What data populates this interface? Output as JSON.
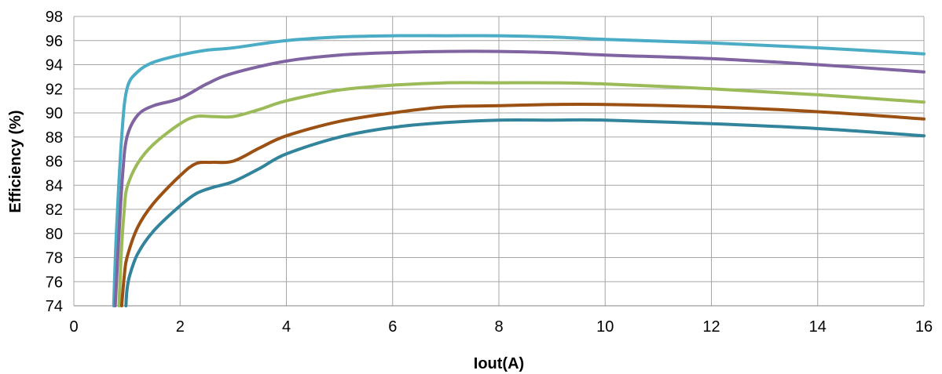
{
  "chart_data": {
    "type": "line",
    "title": "",
    "xlabel": "Iout(A)",
    "ylabel": "Efficiency (%)",
    "xlim": [
      0,
      16
    ],
    "ylim": [
      74,
      98
    ],
    "xticks": [
      "0",
      "2",
      "4",
      "6",
      "8",
      "10",
      "12",
      "14",
      "16"
    ],
    "yticks": [
      "74",
      "76",
      "78",
      "80",
      "82",
      "84",
      "86",
      "88",
      "90",
      "92",
      "94",
      "96",
      "98"
    ],
    "grid": true,
    "legend": "none",
    "series": [
      {
        "color": "#4bacc6",
        "x": [
          0.75,
          0.8,
          0.9,
          1.0,
          1.2,
          1.5,
          2.0,
          2.5,
          3.0,
          4.0,
          5.0,
          6.0,
          7.0,
          8.0,
          9.0,
          10.0,
          12.0,
          14.0,
          16.0
        ],
        "y": [
          74,
          80,
          88,
          92,
          93.4,
          94.2,
          94.8,
          95.2,
          95.4,
          96.0,
          96.3,
          96.4,
          96.4,
          96.4,
          96.3,
          96.1,
          95.8,
          95.4,
          94.9
        ]
      },
      {
        "color": "#8064a2",
        "x": [
          0.78,
          0.85,
          0.92,
          1.0,
          1.2,
          1.5,
          2.0,
          2.5,
          3.0,
          4.0,
          5.0,
          6.0,
          7.0,
          8.0,
          9.0,
          10.0,
          12.0,
          14.0,
          16.0
        ],
        "y": [
          74,
          80,
          85,
          88,
          89.8,
          90.6,
          91.2,
          92.4,
          93.3,
          94.3,
          94.8,
          95.0,
          95.1,
          95.1,
          95.0,
          94.8,
          94.5,
          94.0,
          93.4
        ]
      },
      {
        "color": "#9bbb59",
        "x": [
          0.85,
          0.9,
          0.95,
          1.0,
          1.2,
          1.5,
          2.0,
          2.3,
          2.6,
          3.0,
          3.5,
          4.0,
          5.0,
          6.0,
          7.0,
          8.0,
          9.0,
          10.0,
          12.0,
          14.0,
          16.0
        ],
        "y": [
          74,
          79,
          82,
          83.8,
          85.8,
          87.4,
          89.1,
          89.7,
          89.7,
          89.7,
          90.3,
          91.0,
          91.9,
          92.3,
          92.5,
          92.5,
          92.5,
          92.4,
          92.0,
          91.5,
          90.9
        ]
      },
      {
        "color": "#9c5114",
        "x": [
          0.9,
          0.95,
          1.0,
          1.2,
          1.5,
          2.0,
          2.3,
          2.6,
          3.0,
          3.5,
          4.0,
          5.0,
          6.0,
          7.0,
          8.0,
          9.0,
          10.0,
          12.0,
          14.0,
          16.0
        ],
        "y": [
          74,
          76.5,
          78,
          80.5,
          82.5,
          84.8,
          85.8,
          85.9,
          86.0,
          87.1,
          88.1,
          89.3,
          90.0,
          90.5,
          90.6,
          90.7,
          90.7,
          90.5,
          90.1,
          89.5
        ]
      },
      {
        "color": "#31849b",
        "x": [
          0.98,
          1.0,
          1.05,
          1.2,
          1.5,
          2.0,
          2.3,
          2.6,
          3.0,
          3.5,
          4.0,
          5.0,
          6.0,
          7.0,
          8.0,
          9.0,
          10.0,
          12.0,
          14.0,
          16.0
        ],
        "y": [
          74,
          75.3,
          76.5,
          78.3,
          80.2,
          82.3,
          83.3,
          83.8,
          84.3,
          85.4,
          86.6,
          88.0,
          88.8,
          89.2,
          89.4,
          89.4,
          89.4,
          89.1,
          88.7,
          88.1
        ]
      }
    ]
  }
}
